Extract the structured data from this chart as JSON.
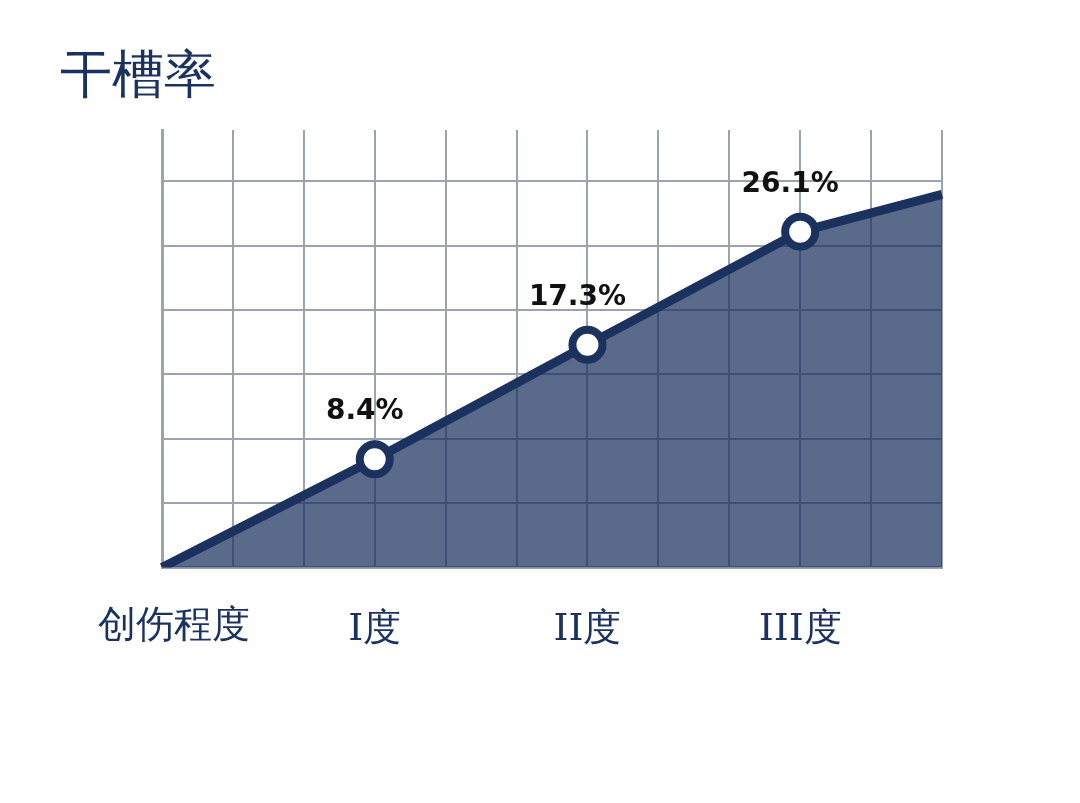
{
  "chart_data": {
    "type": "area",
    "title": "干槽率",
    "xlabel": "创伤程度",
    "categories": [
      null,
      null,
      null,
      "I度",
      null,
      null,
      "II度",
      null,
      null,
      "III度",
      null,
      null
    ],
    "series": [
      {
        "color": "#1b315e",
        "values": [
          0,
          null,
          null,
          8.4,
          null,
          null,
          17.3,
          null,
          null,
          26.1,
          null,
          29
        ],
        "value_labels": [
          null,
          null,
          null,
          "8.4%",
          null,
          null,
          "17.3%",
          null,
          null,
          "26.1%",
          null,
          null
        ]
      }
    ],
    "ylim": [
      0,
      34
    ],
    "yticks": [
      {
        "value": 0,
        "label": null
      },
      {
        "value": 5,
        "label": null
      },
      {
        "value": 10,
        "label": null
      },
      {
        "value": 15,
        "label": null
      },
      {
        "value": 20,
        "label": null
      },
      {
        "value": 25,
        "label": null
      },
      {
        "value": 30,
        "label": null
      }
    ],
    "tick_labels": "x",
    "grid": true,
    "legend": false,
    "marker": "circle"
  }
}
